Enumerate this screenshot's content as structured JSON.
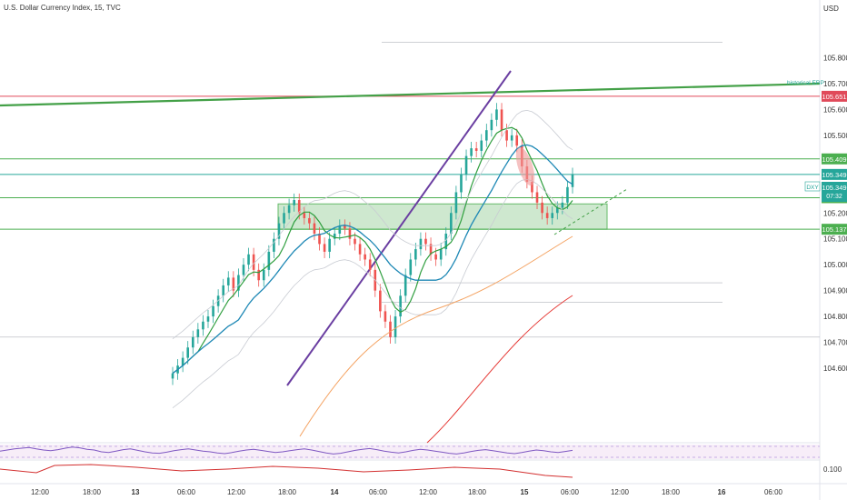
{
  "header": {
    "title": "U.S. Dollar Currency Index, 15, TVC",
    "currency": "USD"
  },
  "chart_data": {
    "type": "line",
    "title": "U.S. Dollar Currency Index, 15, TVC",
    "symbol": "DXY",
    "currency": "USD",
    "countdown": "07:32",
    "y_axis": {
      "ticks": [
        105.8,
        105.7,
        105.6,
        105.5,
        105.3,
        105.2,
        105.1,
        105.0,
        104.9,
        104.8,
        104.7,
        104.6
      ],
      "tick_labels": [
        "105.800",
        "105.700",
        "105.600",
        "105.500",
        "105.300",
        "105.200",
        "105.100",
        "105.000",
        "104.900",
        "104.800",
        "104.700",
        "104.600"
      ],
      "ylim": [
        104.55,
        105.9
      ]
    },
    "x_axis": {
      "tick_labels": [
        "12:00",
        "18:00",
        "13",
        "06:00",
        "12:00",
        "18:00",
        "14",
        "06:00",
        "12:00",
        "18:00",
        "15",
        "06:00",
        "12:00",
        "18:00",
        "16",
        "06:00"
      ]
    },
    "horizontal_levels": [
      {
        "value": 105.651,
        "label": "105.651",
        "color": "#e04a5a"
      },
      {
        "value": 105.409,
        "label": "105.409",
        "color": "#4caf50"
      },
      {
        "value": 105.349,
        "label": "105.349",
        "color": "#26a69a"
      },
      {
        "value": 105.259,
        "label": "105.259",
        "color": "#4caf50"
      },
      {
        "value": 105.137,
        "label": "105.137",
        "color": "#4caf50"
      }
    ],
    "annotations": {
      "trendline_label": "historical ERP",
      "symbol_badge": "DXY",
      "last_price": "105.349"
    },
    "close": [
      104.58,
      104.61,
      104.64,
      104.68,
      104.72,
      104.75,
      104.78,
      104.8,
      104.84,
      104.88,
      104.92,
      104.95,
      104.9,
      104.96,
      105.0,
      105.04,
      104.98,
      104.94,
      104.98,
      105.05,
      105.1,
      105.16,
      105.2,
      105.23,
      105.25,
      105.2,
      105.18,
      105.16,
      105.12,
      105.08,
      105.05,
      105.1,
      105.12,
      105.15,
      105.14,
      105.1,
      105.08,
      105.04,
      105.02,
      104.98,
      104.9,
      104.82,
      104.78,
      104.72,
      104.8,
      104.88,
      104.96,
      105.02,
      105.06,
      105.1,
      105.08,
      105.04,
      105.02,
      105.06,
      105.12,
      105.2,
      105.28,
      105.35,
      105.42,
      105.45,
      105.44,
      105.48,
      105.52,
      105.56,
      105.6,
      105.52,
      105.48,
      105.5,
      105.46,
      105.38,
      105.32,
      105.28,
      105.24,
      105.2,
      105.18,
      105.2,
      105.22,
      105.24,
      105.3,
      105.35
    ],
    "rsi": [
      52,
      55,
      58,
      60,
      62,
      58,
      55,
      53,
      56,
      60,
      63,
      61,
      57,
      55,
      50,
      48,
      52,
      56,
      58,
      54,
      50,
      47,
      46,
      49,
      53,
      56,
      58,
      55,
      52,
      50,
      47,
      45,
      48,
      52,
      55,
      57,
      54,
      51,
      48,
      50,
      53,
      56,
      58,
      55,
      51,
      47,
      44,
      46,
      50,
      54,
      57,
      59,
      56,
      52,
      49,
      47,
      50,
      54,
      57,
      55,
      52,
      49,
      46,
      44,
      47,
      51,
      54,
      56,
      53,
      50,
      47,
      45,
      48,
      52,
      55,
      53,
      50,
      48,
      51,
      54
    ],
    "indicator": {
      "label": "0.100"
    }
  }
}
